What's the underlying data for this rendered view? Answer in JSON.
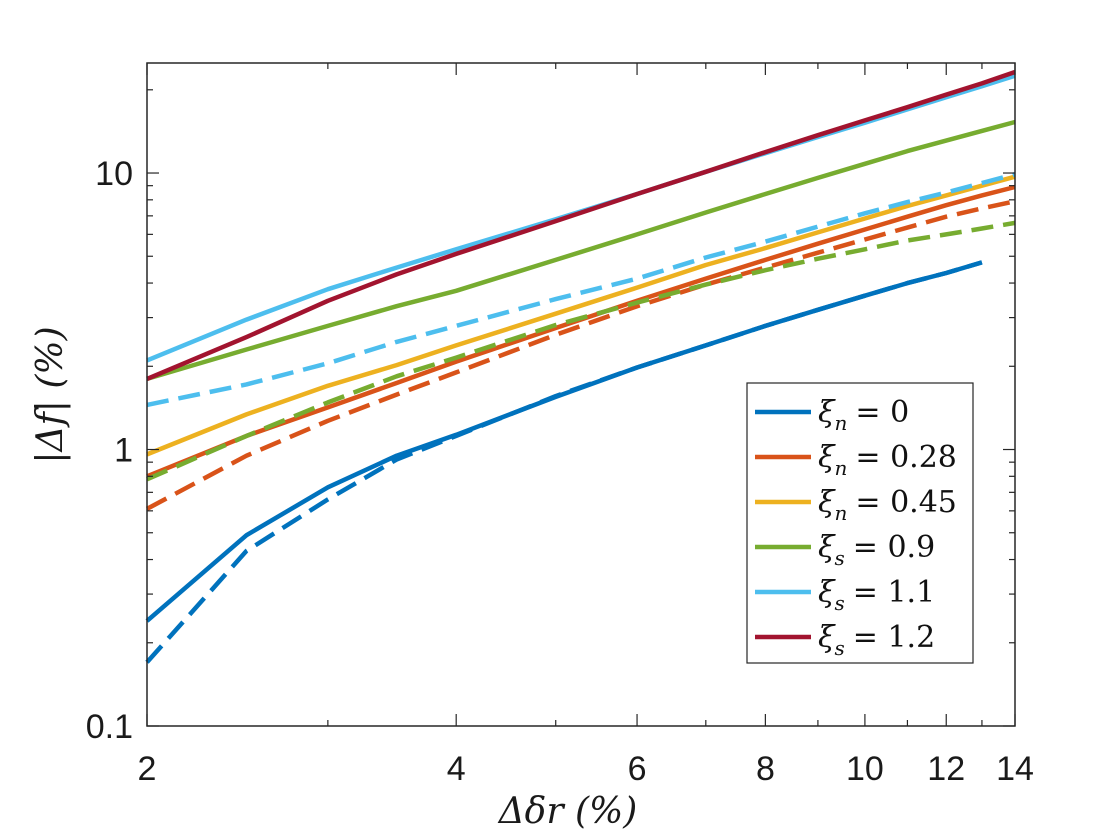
{
  "chart_data": {
    "type": "line",
    "title": "",
    "xlabel": "Δδr (%)",
    "ylabel": "|Δf| (%)",
    "xscale": "log",
    "yscale": "log",
    "xlim": [
      2,
      14
    ],
    "ylim": [
      0.1,
      25
    ],
    "xticks": [
      2,
      4,
      6,
      8,
      10,
      12,
      14
    ],
    "xtick_labels": [
      "2",
      "4",
      "6",
      "8",
      "10",
      "12",
      "14"
    ],
    "yticks": [
      0.1,
      1,
      10
    ],
    "ytick_labels": [
      "0.1",
      "1",
      "10"
    ],
    "grid": false,
    "legend_position": "lower-right",
    "x": [
      2,
      2.5,
      3,
      3.5,
      4,
      5,
      6,
      7,
      8,
      9,
      10,
      11,
      12,
      13,
      14
    ],
    "series": [
      {
        "name": "ξn = 0",
        "legend_symbol": "ξ",
        "legend_sub": "n",
        "legend_value": "= 0",
        "color": "#0072BD",
        "style": "solid",
        "values": [
          0.24,
          0.49,
          0.73,
          0.95,
          1.13,
          1.55,
          1.98,
          2.38,
          2.8,
          3.2,
          3.6,
          4.0,
          4.35,
          4.75,
          null
        ]
      },
      {
        "name": "ξn = 0 (dashed)",
        "color": "#0072BD",
        "style": "dashed",
        "values": [
          0.17,
          0.43,
          0.66,
          0.92,
          1.12,
          1.56,
          1.98,
          2.38,
          2.8,
          3.2,
          3.6,
          4.0,
          4.35,
          4.75,
          null
        ]
      },
      {
        "name": "ξn = 0.28",
        "legend_symbol": "ξ",
        "legend_sub": "n",
        "legend_value": "= 0.28",
        "color": "#D95319",
        "style": "solid",
        "values": [
          0.8,
          1.12,
          1.42,
          1.74,
          2.08,
          2.75,
          3.45,
          4.15,
          4.85,
          5.55,
          6.25,
          6.95,
          7.65,
          8.3,
          8.9
        ]
      },
      {
        "name": "ξn = 0.28 (dashed)",
        "color": "#D95319",
        "style": "dashed",
        "values": [
          0.61,
          0.95,
          1.27,
          1.58,
          1.9,
          2.6,
          3.3,
          3.95,
          4.55,
          5.15,
          5.75,
          6.35,
          6.95,
          7.45,
          7.9
        ]
      },
      {
        "name": "ξn = 0.45",
        "legend_symbol": "ξ",
        "legend_sub": "n",
        "legend_value": "= 0.45",
        "color": "#EDB120",
        "style": "solid",
        "values": [
          0.96,
          1.34,
          1.7,
          2.02,
          2.38,
          3.1,
          3.85,
          4.65,
          5.35,
          6.1,
          6.85,
          7.6,
          8.3,
          9.0,
          9.7
        ]
      },
      {
        "name": "ξs = 0.9",
        "legend_symbol": "ξ",
        "legend_sub": "s",
        "legend_value": "= 0.9",
        "color": "#77AC30",
        "style": "solid",
        "values": [
          1.8,
          2.3,
          2.8,
          3.3,
          3.75,
          4.85,
          6.0,
          7.2,
          8.4,
          9.6,
          10.8,
          12.0,
          13.1,
          14.2,
          15.3
        ]
      },
      {
        "name": "ξs = 0.9 (dashed)",
        "color": "#77AC30",
        "style": "dashed",
        "values": [
          0.78,
          1.12,
          1.48,
          1.84,
          2.15,
          2.82,
          3.4,
          3.95,
          4.45,
          4.9,
          5.3,
          5.7,
          6.0,
          6.3,
          6.6
        ]
      },
      {
        "name": "ξs = 1.1",
        "legend_symbol": "ξ",
        "legend_sub": "s",
        "legend_value": "= 1.1",
        "color": "#4DBEEE",
        "style": "solid",
        "values": [
          2.1,
          2.95,
          3.8,
          4.55,
          5.3,
          6.8,
          8.4,
          10.1,
          11.8,
          13.5,
          15.2,
          17.0,
          18.8,
          20.6,
          22.5
        ]
      },
      {
        "name": "ξs = 1.1 (dashed)",
        "color": "#4DBEEE",
        "style": "dashed",
        "values": [
          1.45,
          1.72,
          2.05,
          2.45,
          2.8,
          3.5,
          4.15,
          4.95,
          5.65,
          6.4,
          7.15,
          7.85,
          8.5,
          9.2,
          9.9
        ]
      },
      {
        "name": "ξs = 1.2",
        "legend_symbol": "ξ",
        "legend_sub": "s",
        "legend_value": "= 1.2",
        "color": "#A2142F",
        "style": "solid",
        "values": [
          1.8,
          2.55,
          3.45,
          4.3,
          5.1,
          6.7,
          8.4,
          10.1,
          11.9,
          13.7,
          15.5,
          17.3,
          19.2,
          21.1,
          23.2
        ]
      }
    ]
  }
}
